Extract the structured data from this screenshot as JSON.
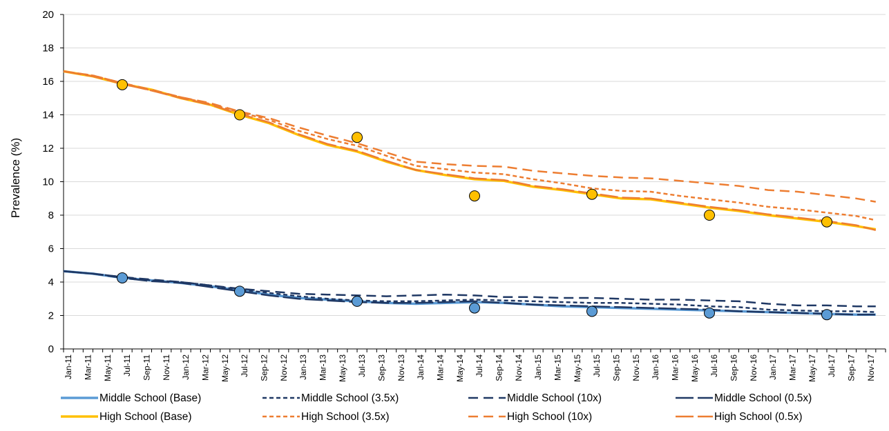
{
  "chart_data": {
    "type": "line",
    "title": "",
    "xlabel": "",
    "ylabel": "Prevalence (%)",
    "ylim": [
      0,
      20
    ],
    "yticks": [
      0,
      2,
      4,
      6,
      8,
      10,
      12,
      14,
      16,
      18,
      20
    ],
    "grid": "horizontal",
    "legend_position": "bottom",
    "x_tick_labels": [
      "Jan-11",
      "Mar-11",
      "May-11",
      "Jul-11",
      "Sep-11",
      "Nov-11",
      "Jan-12",
      "Mar-12",
      "May-12",
      "Jul-12",
      "Sep-12",
      "Nov-12",
      "Jan-13",
      "Mar-13",
      "May-13",
      "Jul-13",
      "Sep-13",
      "Nov-13",
      "Jan-14",
      "Mar-14",
      "May-14",
      "Jul-14",
      "Sep-14",
      "Nov-14",
      "Jan-15",
      "Mar-15",
      "May-15",
      "Jul-15",
      "Sep-15",
      "Nov-15",
      "Jan-16",
      "Mar-16",
      "May-16",
      "Jul-16",
      "Sep-16",
      "Nov-16",
      "Jan-17",
      "Mar-17",
      "May-17",
      "Jul-17",
      "Sep-17",
      "Nov-17"
    ],
    "x_months": 84,
    "series": [
      {
        "name": "Middle School (Base)",
        "color": "#5B9BD5",
        "dash": "solid",
        "width": 3.5,
        "points": [
          [
            0,
            4.65
          ],
          [
            3,
            4.5
          ],
          [
            6,
            4.25
          ],
          [
            9,
            4.1
          ],
          [
            12,
            3.95
          ],
          [
            15,
            3.75
          ],
          [
            18,
            3.5
          ],
          [
            21,
            3.25
          ],
          [
            24,
            3.05
          ],
          [
            27,
            2.95
          ],
          [
            30,
            2.85
          ],
          [
            33,
            2.75
          ],
          [
            36,
            2.7
          ],
          [
            39,
            2.75
          ],
          [
            42,
            2.8
          ],
          [
            45,
            2.75
          ],
          [
            48,
            2.65
          ],
          [
            51,
            2.55
          ],
          [
            54,
            2.5
          ],
          [
            57,
            2.45
          ],
          [
            60,
            2.4
          ],
          [
            63,
            2.35
          ],
          [
            66,
            2.3
          ],
          [
            69,
            2.25
          ],
          [
            72,
            2.2
          ],
          [
            75,
            2.15
          ],
          [
            78,
            2.1
          ],
          [
            81,
            2.05
          ],
          [
            83,
            2.05
          ]
        ]
      },
      {
        "name": "Middle School (3.5x)",
        "color": "#1F3864",
        "dash": "6,4",
        "width": 2.5,
        "points": [
          [
            0,
            4.65
          ],
          [
            3,
            4.5
          ],
          [
            6,
            4.3
          ],
          [
            9,
            4.1
          ],
          [
            12,
            4.0
          ],
          [
            15,
            3.8
          ],
          [
            18,
            3.55
          ],
          [
            21,
            3.35
          ],
          [
            24,
            3.15
          ],
          [
            27,
            3.0
          ],
          [
            30,
            2.9
          ],
          [
            33,
            2.85
          ],
          [
            36,
            2.85
          ],
          [
            39,
            2.9
          ],
          [
            42,
            2.95
          ],
          [
            45,
            2.9
          ],
          [
            48,
            2.85
          ],
          [
            51,
            2.8
          ],
          [
            54,
            2.75
          ],
          [
            57,
            2.75
          ],
          [
            60,
            2.7
          ],
          [
            63,
            2.65
          ],
          [
            66,
            2.55
          ],
          [
            69,
            2.5
          ],
          [
            72,
            2.35
          ],
          [
            75,
            2.3
          ],
          [
            78,
            2.25
          ],
          [
            81,
            2.25
          ],
          [
            83,
            2.2
          ]
        ]
      },
      {
        "name": "Middle School (10x)",
        "color": "#1F3864",
        "dash": "14,8",
        "width": 2.5,
        "points": [
          [
            0,
            4.65
          ],
          [
            3,
            4.5
          ],
          [
            6,
            4.3
          ],
          [
            9,
            4.15
          ],
          [
            12,
            4.0
          ],
          [
            15,
            3.8
          ],
          [
            18,
            3.6
          ],
          [
            21,
            3.45
          ],
          [
            24,
            3.3
          ],
          [
            27,
            3.25
          ],
          [
            30,
            3.2
          ],
          [
            33,
            3.15
          ],
          [
            36,
            3.2
          ],
          [
            39,
            3.25
          ],
          [
            42,
            3.2
          ],
          [
            45,
            3.1
          ],
          [
            48,
            3.1
          ],
          [
            51,
            3.05
          ],
          [
            54,
            3.05
          ],
          [
            57,
            3.0
          ],
          [
            60,
            2.95
          ],
          [
            63,
            2.95
          ],
          [
            66,
            2.9
          ],
          [
            69,
            2.85
          ],
          [
            72,
            2.7
          ],
          [
            75,
            2.6
          ],
          [
            78,
            2.6
          ],
          [
            81,
            2.55
          ],
          [
            83,
            2.55
          ]
        ]
      },
      {
        "name": "Middle School (0.5x)",
        "color": "#1F3864",
        "dash": "26,6",
        "width": 2.5,
        "points": [
          [
            0,
            4.65
          ],
          [
            3,
            4.5
          ],
          [
            6,
            4.25
          ],
          [
            9,
            4.05
          ],
          [
            12,
            3.95
          ],
          [
            15,
            3.7
          ],
          [
            18,
            3.45
          ],
          [
            21,
            3.2
          ],
          [
            24,
            3.0
          ],
          [
            27,
            2.9
          ],
          [
            30,
            2.8
          ],
          [
            33,
            2.75
          ],
          [
            36,
            2.75
          ],
          [
            39,
            2.8
          ],
          [
            42,
            2.85
          ],
          [
            45,
            2.75
          ],
          [
            48,
            2.65
          ],
          [
            51,
            2.6
          ],
          [
            54,
            2.55
          ],
          [
            57,
            2.5
          ],
          [
            60,
            2.45
          ],
          [
            63,
            2.4
          ],
          [
            66,
            2.35
          ],
          [
            69,
            2.25
          ],
          [
            72,
            2.2
          ],
          [
            75,
            2.15
          ],
          [
            78,
            2.1
          ],
          [
            81,
            2.05
          ],
          [
            83,
            2.05
          ]
        ]
      },
      {
        "name": "High School (Base)",
        "color": "#FFC000",
        "dash": "solid",
        "width": 3.5,
        "points": [
          [
            0,
            16.6
          ],
          [
            3,
            16.3
          ],
          [
            6,
            15.85
          ],
          [
            9,
            15.5
          ],
          [
            12,
            15.0
          ],
          [
            15,
            14.6
          ],
          [
            18,
            14.0
          ],
          [
            21,
            13.5
          ],
          [
            24,
            12.8
          ],
          [
            27,
            12.2
          ],
          [
            30,
            11.8
          ],
          [
            33,
            11.2
          ],
          [
            36,
            10.7
          ],
          [
            39,
            10.4
          ],
          [
            42,
            10.15
          ],
          [
            45,
            10.05
          ],
          [
            48,
            9.7
          ],
          [
            51,
            9.5
          ],
          [
            54,
            9.25
          ],
          [
            57,
            9.0
          ],
          [
            60,
            8.95
          ],
          [
            63,
            8.7
          ],
          [
            66,
            8.45
          ],
          [
            69,
            8.25
          ],
          [
            72,
            8.0
          ],
          [
            75,
            7.8
          ],
          [
            78,
            7.6
          ],
          [
            81,
            7.35
          ],
          [
            83,
            7.15
          ]
        ]
      },
      {
        "name": "High School (3.5x)",
        "color": "#ED7D31",
        "dash": "6,4",
        "width": 2.5,
        "points": [
          [
            0,
            16.6
          ],
          [
            3,
            16.35
          ],
          [
            6,
            15.9
          ],
          [
            9,
            15.45
          ],
          [
            12,
            15.05
          ],
          [
            15,
            14.65
          ],
          [
            18,
            14.15
          ],
          [
            21,
            13.7
          ],
          [
            24,
            13.05
          ],
          [
            27,
            12.55
          ],
          [
            30,
            12.15
          ],
          [
            33,
            11.55
          ],
          [
            36,
            10.95
          ],
          [
            39,
            10.75
          ],
          [
            42,
            10.55
          ],
          [
            45,
            10.45
          ],
          [
            48,
            10.15
          ],
          [
            51,
            9.9
          ],
          [
            54,
            9.6
          ],
          [
            57,
            9.45
          ],
          [
            60,
            9.4
          ],
          [
            63,
            9.15
          ],
          [
            66,
            8.95
          ],
          [
            69,
            8.75
          ],
          [
            72,
            8.5
          ],
          [
            75,
            8.35
          ],
          [
            78,
            8.15
          ],
          [
            81,
            7.95
          ],
          [
            83,
            7.7
          ]
        ]
      },
      {
        "name": "High School (10x)",
        "color": "#ED7D31",
        "dash": "14,8",
        "width": 2.5,
        "points": [
          [
            0,
            16.6
          ],
          [
            3,
            16.35
          ],
          [
            6,
            15.9
          ],
          [
            9,
            15.5
          ],
          [
            12,
            15.05
          ],
          [
            15,
            14.7
          ],
          [
            18,
            14.2
          ],
          [
            21,
            13.8
          ],
          [
            24,
            13.25
          ],
          [
            27,
            12.75
          ],
          [
            30,
            12.3
          ],
          [
            33,
            11.75
          ],
          [
            36,
            11.2
          ],
          [
            39,
            11.05
          ],
          [
            42,
            10.95
          ],
          [
            45,
            10.9
          ],
          [
            48,
            10.65
          ],
          [
            51,
            10.5
          ],
          [
            54,
            10.35
          ],
          [
            57,
            10.25
          ],
          [
            60,
            10.2
          ],
          [
            63,
            10.05
          ],
          [
            66,
            9.9
          ],
          [
            69,
            9.75
          ],
          [
            72,
            9.5
          ],
          [
            75,
            9.4
          ],
          [
            78,
            9.2
          ],
          [
            81,
            9.0
          ],
          [
            83,
            8.8
          ]
        ]
      },
      {
        "name": "High School (0.5x)",
        "color": "#ED7D31",
        "dash": "26,6",
        "width": 2.5,
        "points": [
          [
            0,
            16.6
          ],
          [
            3,
            16.3
          ],
          [
            6,
            15.85
          ],
          [
            9,
            15.45
          ],
          [
            12,
            15.0
          ],
          [
            15,
            14.6
          ],
          [
            18,
            14.05
          ],
          [
            21,
            13.55
          ],
          [
            24,
            12.85
          ],
          [
            27,
            12.25
          ],
          [
            30,
            11.85
          ],
          [
            33,
            11.25
          ],
          [
            36,
            10.7
          ],
          [
            39,
            10.45
          ],
          [
            42,
            10.2
          ],
          [
            45,
            10.1
          ],
          [
            48,
            9.75
          ],
          [
            51,
            9.55
          ],
          [
            54,
            9.3
          ],
          [
            57,
            9.05
          ],
          [
            60,
            9.0
          ],
          [
            63,
            8.75
          ],
          [
            66,
            8.5
          ],
          [
            69,
            8.3
          ],
          [
            72,
            8.05
          ],
          [
            75,
            7.85
          ],
          [
            78,
            7.65
          ],
          [
            81,
            7.4
          ],
          [
            83,
            7.1
          ]
        ]
      }
    ],
    "observed_points": [
      {
        "group": "Middle School",
        "color": "#5B9BD5",
        "points": [
          [
            6,
            4.25
          ],
          [
            18,
            3.45
          ],
          [
            30,
            2.85
          ],
          [
            42,
            2.45
          ],
          [
            54,
            2.25
          ],
          [
            66,
            2.15
          ],
          [
            78,
            2.05
          ]
        ]
      },
      {
        "group": "High School",
        "color": "#FFC000",
        "points": [
          [
            6,
            15.8
          ],
          [
            18,
            14.0
          ],
          [
            30,
            12.65
          ],
          [
            42,
            9.15
          ],
          [
            54,
            9.25
          ],
          [
            66,
            8.0
          ],
          [
            78,
            7.6
          ]
        ]
      }
    ]
  }
}
